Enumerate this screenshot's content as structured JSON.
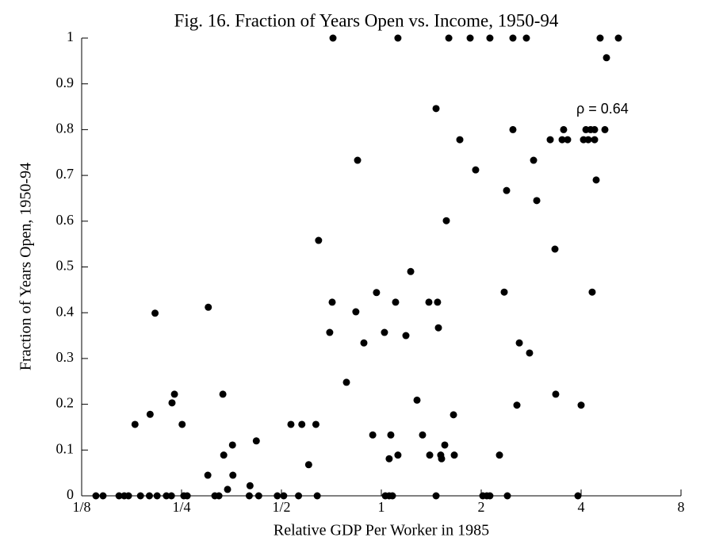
{
  "chart_data": {
    "type": "scatter",
    "title": "Fig. 16. Fraction of Years Open vs. Income, 1950-94",
    "xlabel": "Relative GDP Per Worker in 1985",
    "ylabel": "Fraction of Years Open, 1950-94",
    "annotation": "ρ =  0.64",
    "xscale": "log2",
    "color": "#000000",
    "xlim": [
      0.125,
      8
    ],
    "ylim": [
      0,
      1
    ],
    "xticks": [
      {
        "value": 0.125,
        "label": "1/8"
      },
      {
        "value": 0.25,
        "label": "1/4"
      },
      {
        "value": 0.5,
        "label": "1/2"
      },
      1,
      2,
      4,
      8
    ],
    "yticks": [
      0,
      0.1,
      0.2,
      0.3,
      0.4,
      0.5,
      0.6,
      0.7,
      0.8,
      0.9,
      1
    ],
    "x": [
      0.138,
      0.145,
      0.162,
      0.168,
      0.173,
      0.188,
      0.2,
      0.211,
      0.225,
      0.233,
      0.254,
      0.26,
      0.315,
      0.324,
      0.4,
      0.427,
      0.486,
      0.508,
      0.563,
      0.641,
      1.028,
      1.056,
      1.08,
      1.462,
      2.022,
      2.079,
      2.124,
      2.398,
      3.913,
      0.181,
      0.201,
      0.208,
      0.234,
      0.238,
      0.251,
      0.3,
      0.301,
      0.333,
      0.335,
      0.344,
      0.356,
      0.357,
      0.402,
      0.42,
      0.534,
      0.576,
      0.604,
      0.635,
      0.647,
      0.699,
      0.711,
      0.715,
      0.785,
      0.838,
      0.848,
      0.886,
      0.942,
      0.967,
      1.022,
      1.056,
      1.068,
      1.104,
      1.122,
      1.122,
      1.186,
      1.226,
      1.281,
      1.331,
      1.391,
      1.399,
      1.462,
      1.477,
      1.486,
      1.51,
      1.519,
      1.553,
      1.57,
      1.597,
      1.65,
      1.659,
      1.724,
      1.852,
      1.924,
      2.124,
      2.27,
      2.346,
      2.385,
      2.492,
      2.492,
      2.562,
      2.605,
      2.736,
      2.797,
      2.876,
      2.94,
      3.228,
      3.336,
      3.354,
      3.506,
      3.543,
      3.642,
      4.0,
      4.067,
      4.135,
      4.203,
      4.272,
      4.319,
      4.392,
      4.392,
      4.441,
      4.564,
      4.718,
      4.77,
      5.181
    ],
    "values": [
      0,
      0,
      0,
      0,
      0,
      0,
      0,
      0,
      0,
      0,
      0,
      0,
      0,
      0,
      0,
      0,
      0,
      0,
      0,
      0,
      0,
      0,
      0,
      0,
      0,
      0,
      0,
      0,
      0,
      0.156,
      0.178,
      0.399,
      0.203,
      0.222,
      0.156,
      0.045,
      0.412,
      0.222,
      0.089,
      0.014,
      0.111,
      0.045,
      0.022,
      0.12,
      0.156,
      0.156,
      0.068,
      0.156,
      0.558,
      0.357,
      0.423,
      1,
      0.248,
      0.402,
      0.733,
      0.334,
      0.133,
      0.444,
      0.357,
      0.081,
      0.133,
      0.423,
      1,
      0.089,
      0.35,
      0.49,
      0.209,
      0.133,
      0.423,
      0.089,
      0.846,
      0.423,
      0.367,
      0.089,
      0.081,
      0.111,
      0.601,
      1,
      0.177,
      0.089,
      0.778,
      1,
      0.712,
      1,
      0.089,
      0.445,
      0.667,
      1,
      0.8,
      0.198,
      0.334,
      1,
      0.312,
      0.733,
      0.645,
      0.778,
      0.539,
      0.222,
      0.778,
      0.8,
      0.778,
      0.198,
      0.778,
      0.8,
      0.778,
      0.8,
      0.445,
      0.778,
      0.8,
      0.69,
      1,
      0.8,
      0.957,
      1
    ]
  }
}
